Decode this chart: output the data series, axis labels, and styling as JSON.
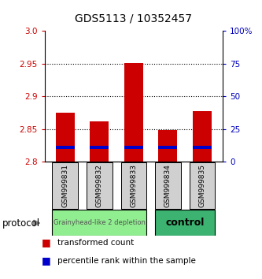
{
  "title": "GDS5113 / 10352457",
  "samples": [
    "GSM999831",
    "GSM999832",
    "GSM999833",
    "GSM999834",
    "GSM999835"
  ],
  "transformed_counts": [
    2.875,
    2.862,
    2.951,
    2.848,
    2.877
  ],
  "base_value": 2.8,
  "percentile_positions": [
    2.822,
    2.822,
    2.822,
    2.822,
    2.822
  ],
  "ylim": [
    2.8,
    3.0
  ],
  "yticks": [
    2.8,
    2.85,
    2.9,
    2.95,
    3.0
  ],
  "y2tick_labels": [
    "0",
    "25",
    "50",
    "75",
    "100%"
  ],
  "group0_label": "Grainyhead-like 2 depletion",
  "group0_color": "#90EE90",
  "group0_samples": [
    0,
    1,
    2
  ],
  "group1_label": "control",
  "group1_color": "#3CB371",
  "group1_samples": [
    3,
    4
  ],
  "bar_color_red": "#CC0000",
  "bar_color_blue": "#0000CC",
  "protocol_label": "protocol",
  "legend_red": "transformed count",
  "legend_blue": "percentile rank within the sample",
  "bg_color": "#FFFFFF",
  "left_tick_color": "#CC0000",
  "right_tick_color": "#0000BB"
}
